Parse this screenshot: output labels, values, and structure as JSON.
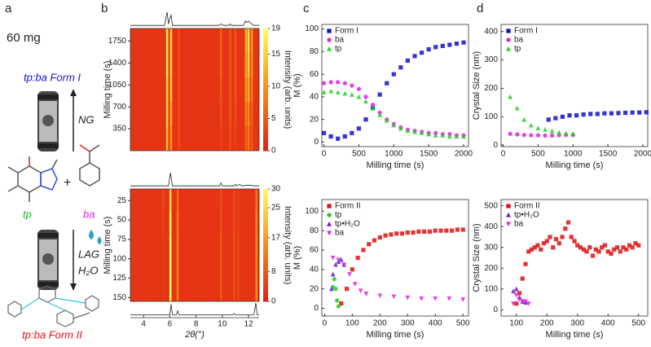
{
  "panel_labels": [
    "a",
    "b",
    "c",
    "d"
  ],
  "scheme": {
    "mass": "60 mg",
    "form1": "tp:ba Form I",
    "ng": "NG",
    "tp": "tp",
    "plus": "+",
    "ba": "ba",
    "lag": "LAG",
    "water": "H₂O",
    "form2": "tp:ba Form II"
  },
  "chart_data": [
    {
      "type": "heatmap",
      "ylabel": "Milling time (s)",
      "colorbar_label": "Intensity (arb. units)",
      "xlim": [
        3,
        12.8
      ],
      "ylim": [
        0,
        1950
      ],
      "yticks": [
        350,
        700,
        1050,
        1400,
        1750
      ],
      "clim": [
        0,
        19
      ],
      "cticks": [
        0,
        5,
        10,
        15,
        19
      ],
      "background": 2,
      "time_bins": [
        0,
        390,
        780,
        1170,
        1560,
        1950
      ],
      "stripes": [
        {
          "x": 5.8,
          "values": [
            14,
            15,
            16,
            17,
            17
          ]
        },
        {
          "x": 6.1,
          "values": [
            10,
            12,
            14,
            15,
            15
          ]
        },
        {
          "x": 6.7,
          "values": [
            4,
            4,
            4,
            4,
            4
          ]
        },
        {
          "x": 9.9,
          "values": [
            3,
            4,
            5,
            6,
            6
          ]
        },
        {
          "x": 10.6,
          "values": [
            4,
            5,
            5,
            5,
            5
          ]
        },
        {
          "x": 11.0,
          "values": [
            3,
            4,
            5,
            5,
            5
          ]
        },
        {
          "x": 11.8,
          "values": [
            6,
            8,
            10,
            12,
            13
          ]
        },
        {
          "x": 12.0,
          "values": [
            8,
            10,
            13,
            15,
            16
          ]
        },
        {
          "x": 12.25,
          "values": [
            5,
            6,
            8,
            10,
            11
          ]
        }
      ],
      "profile_above": {
        "x": [
          3,
          5.6,
          5.75,
          5.8,
          5.9,
          6.0,
          6.1,
          6.2,
          6.4,
          9.7,
          9.9,
          10.1,
          10.5,
          10.6,
          10.7,
          11.6,
          11.75,
          11.85,
          12.0,
          12.1,
          12.25,
          12.4,
          12.8
        ],
        "values": [
          1,
          1,
          8,
          10,
          2,
          6,
          8,
          1,
          1,
          1,
          2,
          1,
          1,
          2,
          1,
          1,
          4,
          3,
          4,
          3,
          2,
          1,
          1
        ]
      }
    },
    {
      "type": "heatmap",
      "ylabel": "Milling time (s)",
      "colorbar_label": "Intensity (arb. units)",
      "xlabel": "2θ(°)",
      "xlim": [
        3,
        12.8
      ],
      "xticks": [
        4,
        6,
        8,
        10,
        12
      ],
      "ylim": [
        155,
        10
      ],
      "yticks": [
        25,
        50,
        75,
        100,
        125,
        150
      ],
      "clim": [
        0,
        30
      ],
      "cticks": [
        0,
        8,
        17,
        25,
        30
      ],
      "background": 3,
      "time_bins": [
        10,
        39,
        68,
        97,
        126,
        155
      ],
      "stripes": [
        {
          "x": 5.5,
          "values": [
            6,
            5,
            4,
            4,
            4
          ]
        },
        {
          "x": 6.05,
          "values": [
            25,
            28,
            30,
            30,
            30
          ]
        },
        {
          "x": 6.6,
          "values": [
            10,
            12,
            13,
            13,
            13
          ]
        },
        {
          "x": 9.9,
          "values": [
            6,
            7,
            8,
            8,
            8
          ]
        },
        {
          "x": 10.9,
          "values": [
            6,
            6,
            7,
            7,
            7
          ]
        },
        {
          "x": 11.2,
          "values": [
            5,
            5,
            6,
            6,
            6
          ]
        },
        {
          "x": 12.6,
          "values": [
            12,
            14,
            15,
            15,
            15
          ]
        }
      ],
      "profile_above": {
        "x": [
          3,
          5.9,
          6.05,
          6.2,
          9.8,
          9.9,
          10.0,
          10.9,
          11.0,
          11.1,
          11.3,
          11.5,
          12.0,
          12.5,
          12.8
        ],
        "values": [
          1,
          1,
          10,
          1,
          1,
          3,
          1,
          1,
          2,
          1,
          2,
          1,
          1.5,
          1,
          1
        ]
      },
      "profile_below": {
        "x": [
          3,
          6.0,
          6.1,
          6.2,
          6.5,
          6.6,
          6.7,
          10.8,
          10.9,
          11.0,
          12.4,
          12.55,
          12.65,
          12.8
        ],
        "values": [
          1,
          1,
          9,
          1,
          1,
          4,
          1,
          1,
          2,
          1,
          1,
          10,
          1,
          1
        ]
      }
    },
    {
      "type": "scatter",
      "xlabel": "Milling time (s)",
      "ylabel": "M (%)",
      "xlim": [
        -30,
        2070
      ],
      "xticks": [
        0,
        500,
        1000,
        1500,
        2000
      ],
      "ylim": [
        -4,
        104
      ],
      "yticks": [
        0,
        20,
        40,
        60,
        80,
        100
      ],
      "series": [
        {
          "name": "Form I",
          "color": "#1010d0",
          "marker": "square",
          "x": [
            0,
            100,
            200,
            300,
            400,
            500,
            600,
            700,
            800,
            900,
            1000,
            1100,
            1200,
            1300,
            1400,
            1500,
            1600,
            1700,
            1800,
            1900,
            2000
          ],
          "values": [
            8,
            5,
            3,
            5,
            8,
            12,
            20,
            30,
            42,
            52,
            60,
            66,
            72,
            76,
            79,
            82,
            84,
            85,
            86,
            87,
            88
          ]
        },
        {
          "name": "ba",
          "color": "#e020e0",
          "marker": "circle",
          "x": [
            0,
            100,
            200,
            300,
            400,
            500,
            600,
            700,
            800,
            900,
            1000,
            1100,
            1200,
            1300,
            1400,
            1500,
            1600,
            1700,
            1800,
            1900,
            2000
          ],
          "values": [
            52,
            53,
            53,
            52,
            50,
            47,
            40,
            33,
            26,
            20,
            16,
            13,
            11,
            10,
            9,
            8,
            8,
            7,
            7,
            6,
            6
          ]
        },
        {
          "name": "tp",
          "color": "#20d020",
          "marker": "triangle",
          "x": [
            0,
            100,
            200,
            300,
            400,
            500,
            600,
            700,
            800,
            900,
            1000,
            1100,
            1200,
            1300,
            1400,
            1500,
            1600,
            1700,
            1800,
            1900,
            2000
          ],
          "values": [
            44,
            45,
            44,
            43,
            42,
            40,
            36,
            30,
            24,
            19,
            15,
            12,
            10,
            9,
            8,
            7,
            6,
            6,
            5,
            5,
            5
          ]
        }
      ]
    },
    {
      "type": "scatter",
      "xlabel": "Milling time (s)",
      "ylabel": "M (%)",
      "xlim": [
        -10,
        520
      ],
      "xticks": [
        0,
        100,
        200,
        300,
        400,
        500
      ],
      "ylim": [
        -8,
        112
      ],
      "yticks": [
        0,
        20,
        40,
        60,
        80,
        100
      ],
      "series": [
        {
          "name": "Form II",
          "color": "#e01010",
          "marker": "square",
          "x": [
            60,
            80,
            100,
            120,
            140,
            160,
            180,
            200,
            220,
            240,
            260,
            280,
            300,
            320,
            340,
            360,
            380,
            400,
            420,
            440,
            460,
            480,
            500
          ],
          "values": [
            5,
            20,
            40,
            52,
            60,
            66,
            70,
            73,
            75,
            76,
            77,
            77,
            78,
            78,
            79,
            79,
            79,
            80,
            80,
            80,
            80,
            81,
            81
          ]
        },
        {
          "name": "tp",
          "color": "#20d020",
          "marker": "circle",
          "x": [
            30,
            35,
            40,
            45,
            50
          ],
          "values": [
            22,
            30,
            20,
            8,
            2
          ]
        },
        {
          "name": "tp•H₂O",
          "color": "#6a10e0",
          "marker": "triangle",
          "x": [
            25,
            30,
            40,
            50,
            60,
            70
          ],
          "values": [
            20,
            35,
            45,
            48,
            50,
            45
          ]
        },
        {
          "name": "ba",
          "color": "#e020e0",
          "marker": "triangle-down",
          "x": [
            30,
            50,
            70,
            90,
            110,
            130,
            150,
            200,
            250,
            300,
            350,
            400,
            450,
            500
          ],
          "values": [
            52,
            50,
            45,
            35,
            25,
            18,
            15,
            13,
            12,
            11,
            10,
            10,
            10,
            9
          ]
        }
      ]
    },
    {
      "type": "scatter",
      "xlabel": "Milling time (s)",
      "ylabel": "Crystal Size (nm)",
      "xlim": [
        -30,
        2070
      ],
      "xticks": [
        0,
        500,
        1000,
        1500,
        2000
      ],
      "ylim": [
        -5,
        425
      ],
      "yticks": [
        0,
        100,
        200,
        300,
        400
      ],
      "series": [
        {
          "name": "Form I",
          "color": "#1010d0",
          "marker": "square",
          "x": [
            650,
            750,
            850,
            950,
            1050,
            1150,
            1250,
            1350,
            1450,
            1550,
            1650,
            1750,
            1850,
            1950,
            2050
          ],
          "values": [
            90,
            95,
            100,
            105,
            105,
            108,
            110,
            110,
            112,
            112,
            113,
            114,
            115,
            115,
            116
          ]
        },
        {
          "name": "ba",
          "color": "#e020e0",
          "marker": "circle",
          "x": [
            100,
            200,
            300,
            400,
            500,
            600,
            700,
            800,
            900,
            1000
          ],
          "values": [
            40,
            38,
            36,
            35,
            35,
            34,
            34,
            35,
            36,
            36
          ]
        },
        {
          "name": "tp",
          "color": "#20d020",
          "marker": "triangle",
          "x": [
            100,
            200,
            300,
            400,
            500,
            600,
            700,
            800,
            900,
            1000
          ],
          "values": [
            170,
            130,
            90,
            70,
            60,
            55,
            50,
            45,
            42,
            40
          ]
        }
      ]
    },
    {
      "type": "scatter",
      "xlabel": "Milling time (s)",
      "ylabel": "Crystal Size (nm)",
      "xlim": [
        50,
        530
      ],
      "xticks": [
        100,
        200,
        300,
        400,
        500
      ],
      "ylim": [
        -30,
        530
      ],
      "yticks": [
        0,
        100,
        200,
        300,
        400,
        500
      ],
      "series": [
        {
          "name": "Form II",
          "color": "#e01010",
          "marker": "square",
          "x": [
            100,
            110,
            120,
            130,
            140,
            150,
            160,
            170,
            180,
            190,
            200,
            210,
            220,
            230,
            240,
            250,
            260,
            270,
            280,
            290,
            300,
            310,
            320,
            330,
            340,
            350,
            360,
            370,
            380,
            390,
            400,
            410,
            420,
            430,
            440,
            450,
            460,
            470,
            480,
            490,
            500
          ],
          "values": [
            30,
            80,
            150,
            220,
            280,
            290,
            300,
            310,
            290,
            320,
            330,
            350,
            300,
            340,
            320,
            350,
            390,
            420,
            350,
            330,
            310,
            300,
            290,
            280,
            300,
            260,
            290,
            280,
            300,
            310,
            280,
            270,
            290,
            300,
            280,
            300,
            290,
            310,
            300,
            320,
            310
          ]
        },
        {
          "name": "tp•H₂O",
          "color": "#6a10e0",
          "marker": "triangle",
          "x": [
            90,
            100,
            110,
            120,
            130
          ],
          "values": [
            90,
            100,
            60,
            40,
            35
          ]
        },
        {
          "name": "ba",
          "color": "#e020e0",
          "marker": "triangle-down",
          "x": [
            90,
            100,
            110,
            120,
            130,
            140
          ],
          "values": [
            30,
            70,
            50,
            40,
            40,
            30
          ]
        }
      ]
    }
  ]
}
